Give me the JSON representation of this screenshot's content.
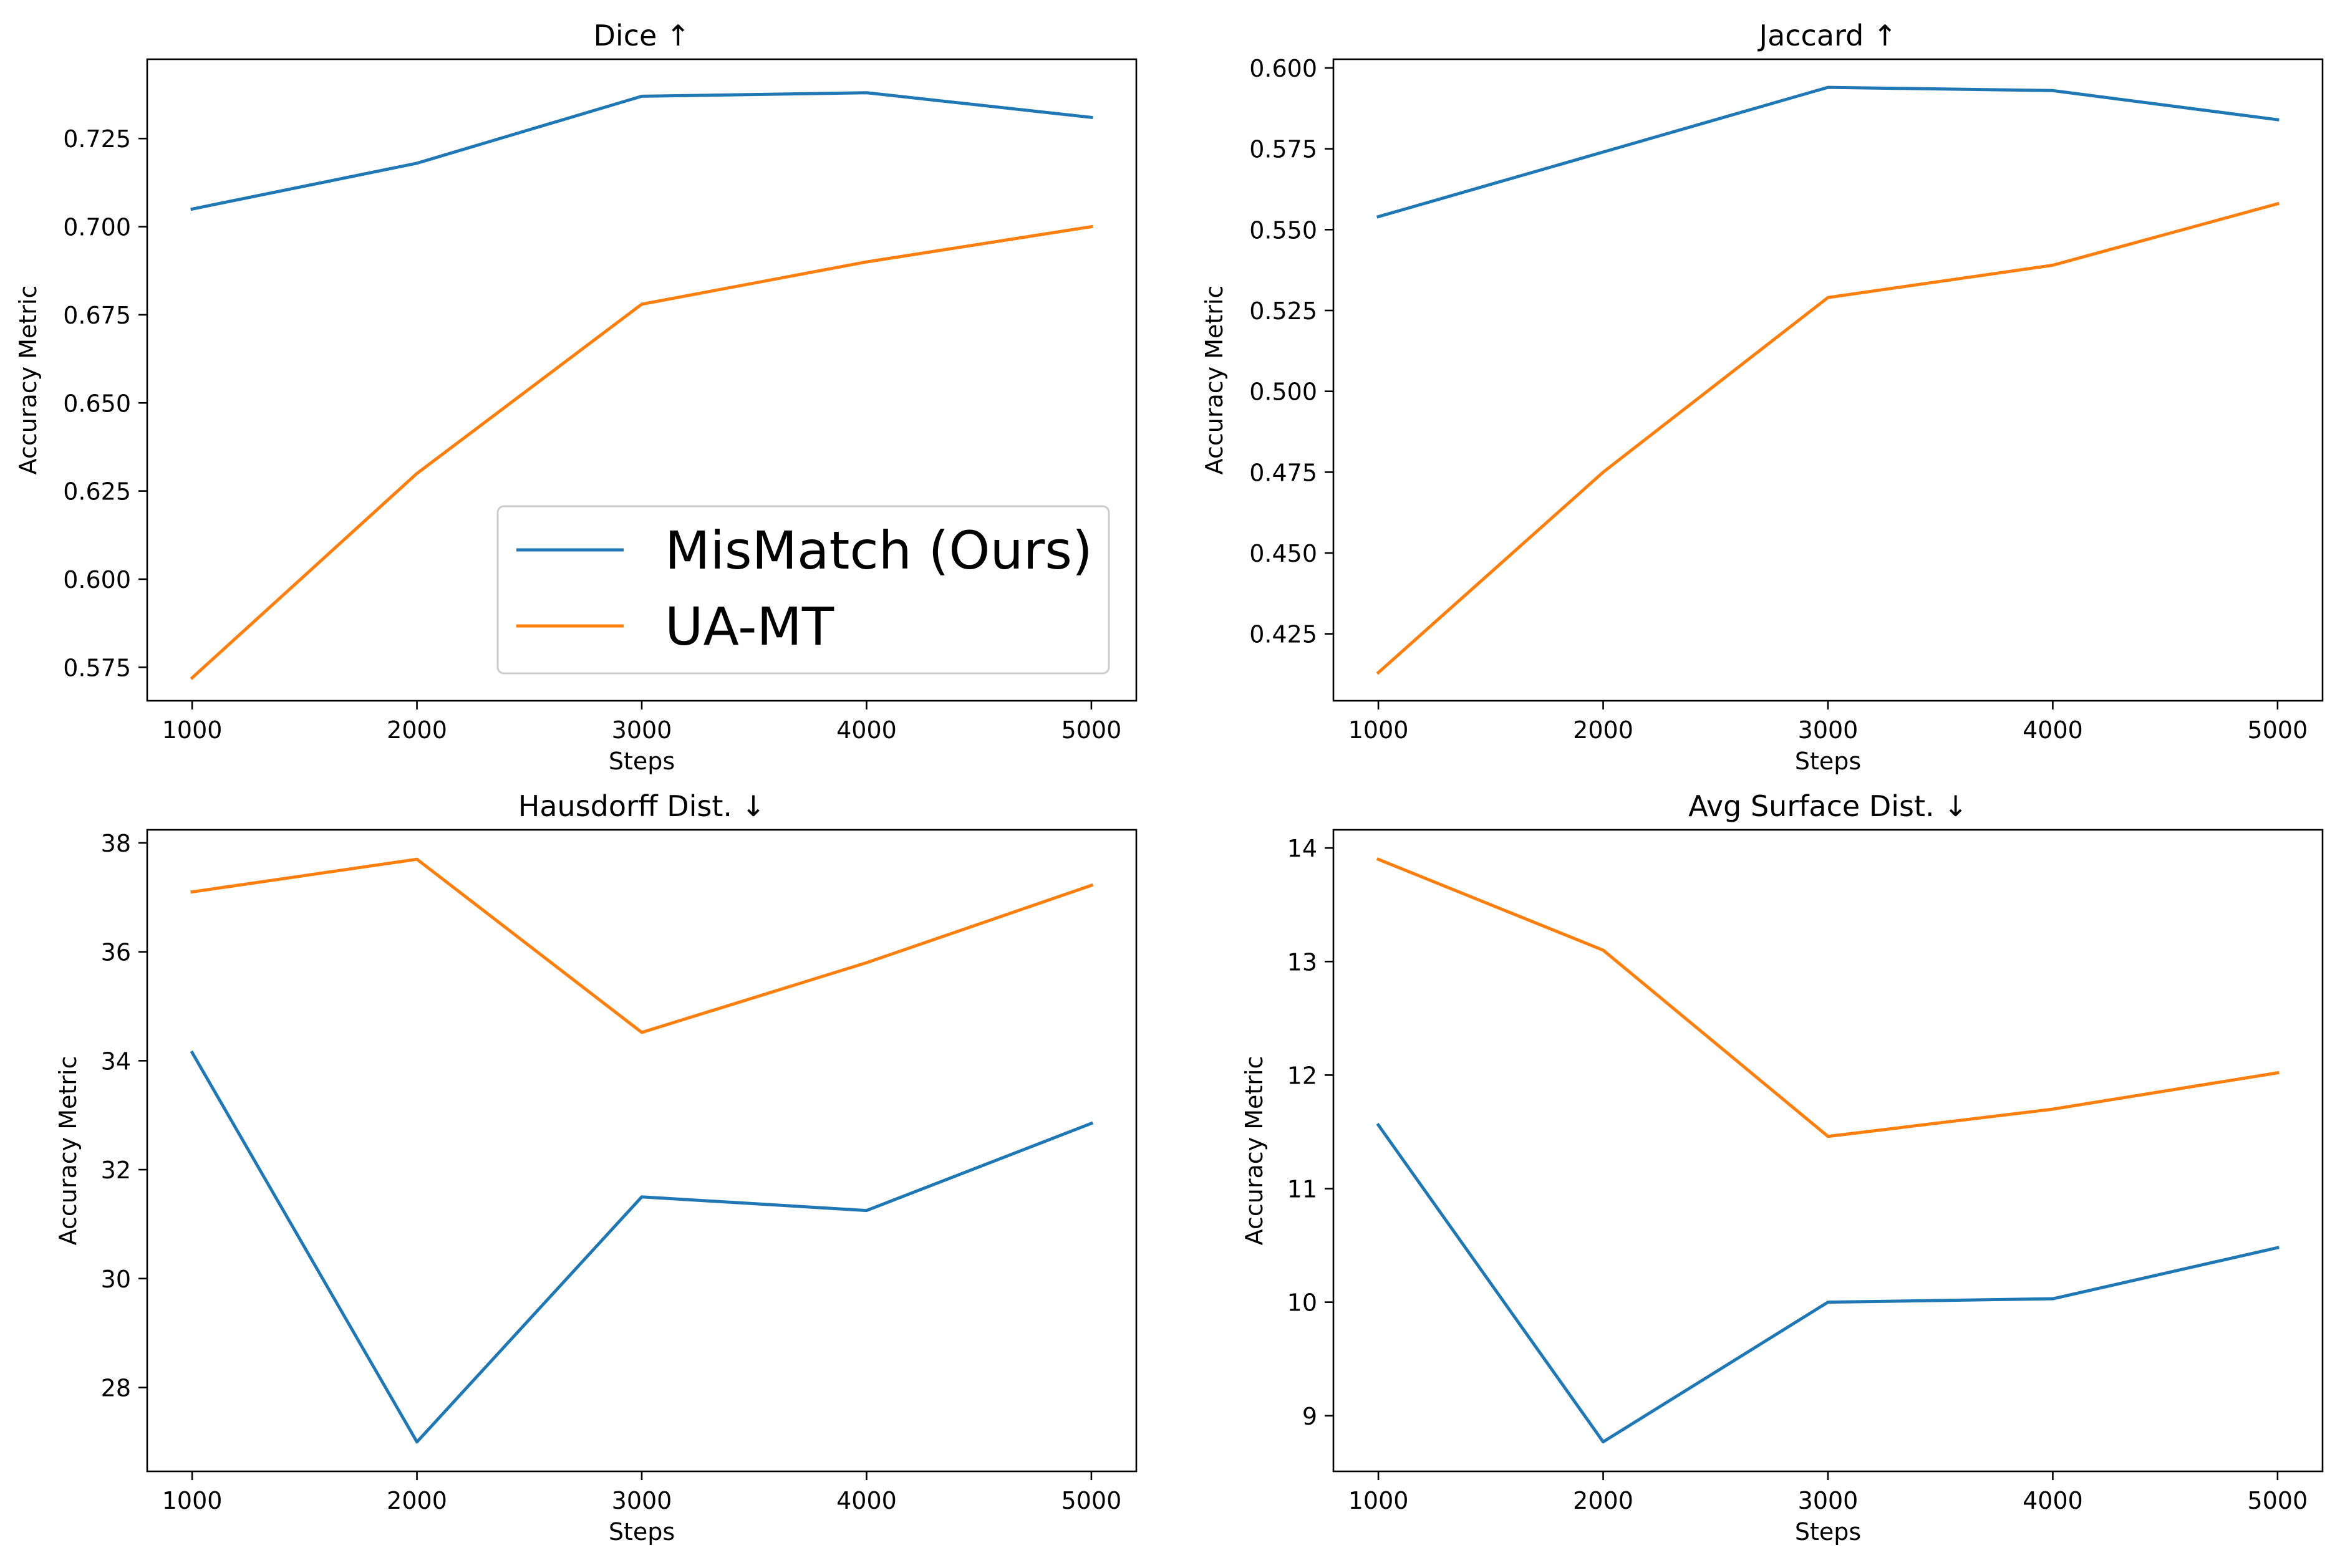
{
  "colors": {
    "series_1": "#1f77b4",
    "series_2": "#ff7f0e",
    "axes": "#000000",
    "background": "#ffffff"
  },
  "legend": {
    "placement": "lower-right",
    "entries": [
      "MisMatch (Ours)",
      "UA-MT"
    ]
  },
  "chart_data": [
    {
      "type": "line",
      "title": "Dice ↑",
      "xlabel": "Steps",
      "ylabel": "Accuracy Metric",
      "x": [
        1000,
        2000,
        3000,
        4000,
        5000
      ],
      "xlim": [
        800,
        5200
      ],
      "ylim": [
        0.5655,
        0.7475
      ],
      "xticks": [
        1000,
        2000,
        3000,
        4000,
        5000
      ],
      "yticks": [
        0.575,
        0.6,
        0.625,
        0.65,
        0.675,
        0.7,
        0.725
      ],
      "ytick_labels": [
        "0.575",
        "0.600",
        "0.625",
        "0.650",
        "0.675",
        "0.700",
        "0.725"
      ],
      "series": [
        {
          "name": "MisMatch (Ours)",
          "values": [
            0.705,
            0.718,
            0.737,
            0.738,
            0.731
          ]
        },
        {
          "name": "UA-MT",
          "values": [
            0.572,
            0.63,
            0.678,
            0.69,
            0.7
          ]
        }
      ],
      "legend": true
    },
    {
      "type": "line",
      "title": "Jaccard ↑",
      "xlabel": "Steps",
      "ylabel": "Accuracy Metric",
      "x": [
        1000,
        2000,
        3000,
        4000,
        5000
      ],
      "xlim": [
        800,
        5200
      ],
      "ylim": [
        0.4043,
        0.6027
      ],
      "xticks": [
        1000,
        2000,
        3000,
        4000,
        5000
      ],
      "yticks": [
        0.425,
        0.45,
        0.475,
        0.5,
        0.525,
        0.55,
        0.575,
        0.6
      ],
      "ytick_labels": [
        "0.425",
        "0.450",
        "0.475",
        "0.500",
        "0.525",
        "0.550",
        "0.575",
        "0.600"
      ],
      "series": [
        {
          "name": "MisMatch (Ours)",
          "values": [
            0.554,
            0.574,
            0.594,
            0.593,
            0.584
          ]
        },
        {
          "name": "UA-MT",
          "values": [
            0.413,
            0.475,
            0.529,
            0.539,
            0.558
          ]
        }
      ],
      "legend": false
    },
    {
      "type": "line",
      "title": "Hausdorff Dist. ↓",
      "xlabel": "Steps",
      "ylabel": "Accuracy Metric",
      "x": [
        1000,
        2000,
        3000,
        4000,
        5000
      ],
      "xlim": [
        800,
        5200
      ],
      "ylim": [
        26.46,
        38.24
      ],
      "xticks": [
        1000,
        2000,
        3000,
        4000,
        5000
      ],
      "yticks": [
        28,
        30,
        32,
        34,
        36,
        38
      ],
      "ytick_labels": [
        "28",
        "30",
        "32",
        "34",
        "36",
        "38"
      ],
      "series": [
        {
          "name": "MisMatch (Ours)",
          "values": [
            34.15,
            27.0,
            31.5,
            31.25,
            32.85
          ]
        },
        {
          "name": "UA-MT",
          "values": [
            37.1,
            37.7,
            34.52,
            35.8,
            37.22
          ]
        }
      ],
      "legend": false
    },
    {
      "type": "line",
      "title": "Avg Surface Dist. ↓",
      "xlabel": "Steps",
      "ylabel": "Accuracy Metric",
      "x": [
        1000,
        2000,
        3000,
        4000,
        5000
      ],
      "xlim": [
        800,
        5200
      ],
      "ylim": [
        8.51,
        14.16
      ],
      "xticks": [
        1000,
        2000,
        3000,
        4000,
        5000
      ],
      "yticks": [
        9,
        10,
        11,
        12,
        13,
        14
      ],
      "ytick_labels": [
        "9",
        "10",
        "11",
        "12",
        "13",
        "14"
      ],
      "series": [
        {
          "name": "MisMatch (Ours)",
          "values": [
            11.56,
            8.77,
            10.0,
            10.03,
            10.48
          ]
        },
        {
          "name": "UA-MT",
          "values": [
            13.9,
            13.1,
            11.46,
            11.7,
            12.02
          ]
        }
      ],
      "legend": false
    }
  ]
}
